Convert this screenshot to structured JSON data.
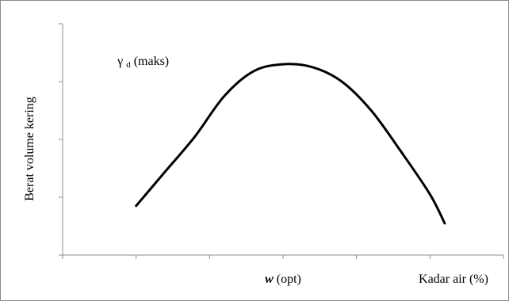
{
  "chart_data": {
    "type": "line",
    "title": "",
    "ylabel": "Berat volume kering",
    "xlabel": "Kadar air (%)",
    "grid": false,
    "legend": "none",
    "xlim": [
      0,
      6
    ],
    "ylim": [
      0,
      4
    ],
    "x_tick_marks": [
      0,
      1,
      2,
      3,
      4,
      5,
      6
    ],
    "y_tick_marks": [
      0,
      1,
      2,
      3,
      4
    ],
    "series": [
      {
        "color": "#000000",
        "x": [
          1.0,
          1.4,
          1.8,
          2.2,
          2.6,
          3.0,
          3.4,
          3.8,
          4.2,
          4.6,
          5.0,
          5.2
        ],
        "y": [
          0.85,
          1.45,
          2.05,
          2.75,
          3.18,
          3.3,
          3.25,
          3.0,
          2.5,
          1.8,
          1.05,
          0.55
        ]
      }
    ],
    "annotations": {
      "peak": {
        "symbol": "γ",
        "subscript": "d",
        "text": " (maks)",
        "x": 0.8,
        "y": 3.4
      },
      "optimum": {
        "symbol": "w",
        "text": " (opt)",
        "x": 3.0
      }
    }
  }
}
